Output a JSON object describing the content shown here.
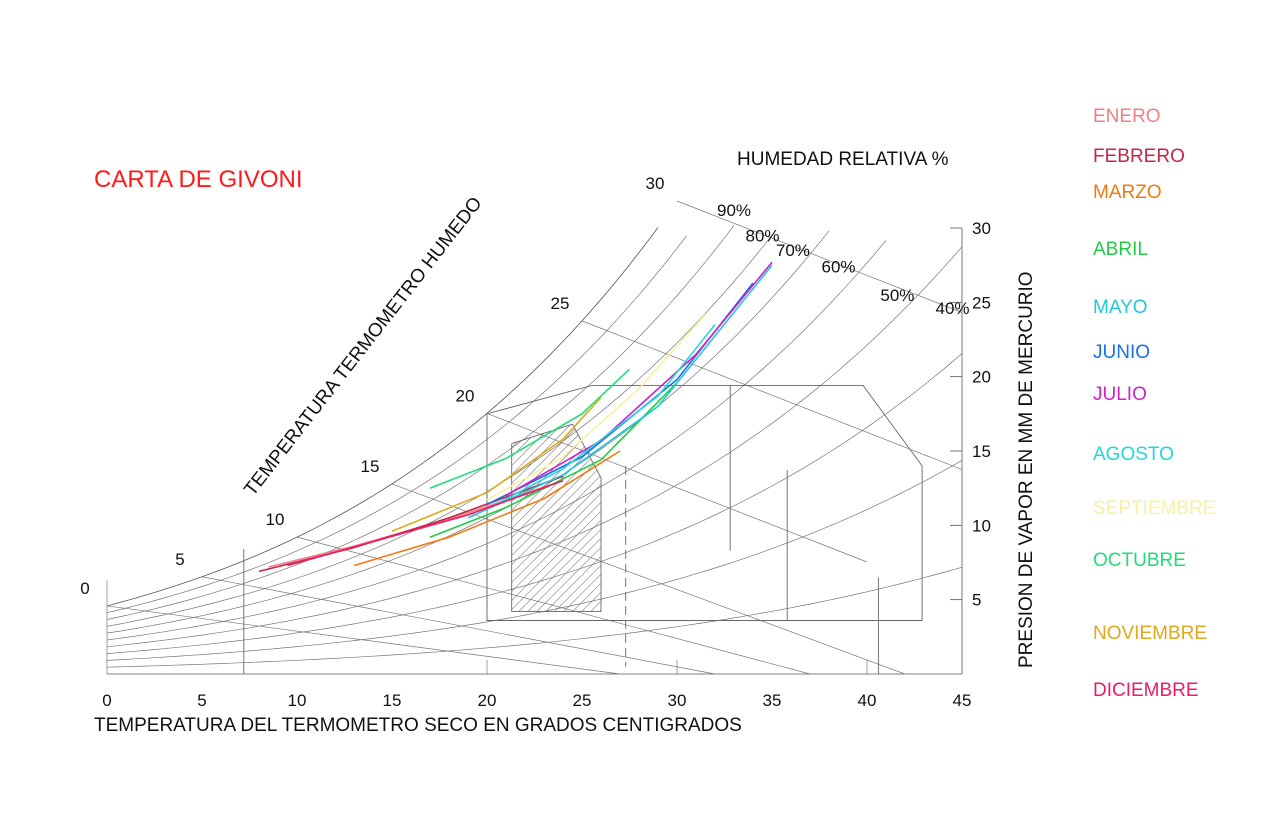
{
  "chart_data": {
    "type": "psychrometric",
    "title": "CARTA DE GIVONI",
    "title_color": "#ff1a1a",
    "xlabel": "TEMPERATURA DEL TERMOMETRO SECO EN GRADOS CENTIGRADOS",
    "ylabel_right": "PRESION DE VAPOR EN MM DE MERCURIO",
    "wetbulb_label": "TEMPERATURA TERMOMETRO HUMEDO",
    "rh_label": "HUMEDAD RELATIVA %",
    "x_ticks": [
      "0",
      "5",
      "10",
      "15",
      "20",
      "25",
      "30",
      "35",
      "40",
      "45"
    ],
    "x_range": [
      0,
      45
    ],
    "y_ticks": [
      "5",
      "10",
      "15",
      "20",
      "25",
      "30"
    ],
    "y_range": [
      0,
      30
    ],
    "wetbulb_ticks": [
      "0",
      "5",
      "10",
      "15",
      "20",
      "25",
      "30"
    ],
    "rh_ticks": [
      "90%",
      "80%",
      "70%",
      "60%",
      "50%",
      "40%"
    ],
    "legend_position": "right",
    "months": [
      {
        "name": "ENERO",
        "color": "#f08080",
        "t": [
          8.5,
          13,
          18,
          23.5
        ],
        "p": [
          7.2,
          8.6,
          10.4,
          12.8
        ]
      },
      {
        "name": "FEBRERO",
        "color": "#c0284a",
        "t": [
          8,
          13,
          18,
          24
        ],
        "p": [
          6.9,
          8.5,
          10.5,
          13.3
        ]
      },
      {
        "name": "MARZO",
        "color": "#f07a10",
        "t": [
          13,
          18,
          23,
          27
        ],
        "p": [
          7.3,
          9.2,
          11.8,
          15
        ]
      },
      {
        "name": "ABRIL",
        "color": "#22cc44",
        "t": [
          17,
          21,
          26,
          30
        ],
        "p": [
          9.2,
          11.2,
          14.4,
          19.6
        ]
      },
      {
        "name": "MAYO",
        "color": "#22c8d8",
        "t": [
          19,
          24,
          29,
          35
        ],
        "p": [
          10.5,
          13.4,
          18,
          27.5
        ]
      },
      {
        "name": "JUNIO",
        "color": "#1a6ee8",
        "t": [
          20,
          25,
          30,
          34
        ],
        "p": [
          11.4,
          14.6,
          19.8,
          26.3
        ]
      },
      {
        "name": "JULIO",
        "color": "#cc22cc",
        "t": [
          21,
          26,
          31,
          35
        ],
        "p": [
          12,
          15.7,
          21.5,
          27.7
        ]
      },
      {
        "name": "AGOSTO",
        "color": "#22d8d8",
        "t": [
          20,
          24,
          29,
          32
        ],
        "p": [
          11.1,
          13.8,
          18.7,
          23.5
        ]
      },
      {
        "name": "SEPTIEMBRE",
        "color": "#f8f0a0",
        "t": [
          20,
          24,
          28,
          31.5
        ],
        "p": [
          11.7,
          14.6,
          19.2,
          24.2
        ]
      },
      {
        "name": "OCTUBRE",
        "color": "#22dd77",
        "t": [
          17,
          21,
          25,
          27.5
        ],
        "p": [
          12.5,
          14.5,
          17.5,
          20.5
        ]
      },
      {
        "name": "NOVIEMBRE",
        "color": "#e0a81a",
        "t": [
          15,
          20,
          24,
          26
        ],
        "p": [
          9.6,
          12.2,
          15.8,
          18.6
        ]
      },
      {
        "name": "DICIEMBRE",
        "color": "#ee1a6a",
        "t": [
          9.5,
          14,
          19,
          24
        ],
        "p": [
          7.3,
          8.9,
          10.7,
          13
        ]
      }
    ]
  }
}
